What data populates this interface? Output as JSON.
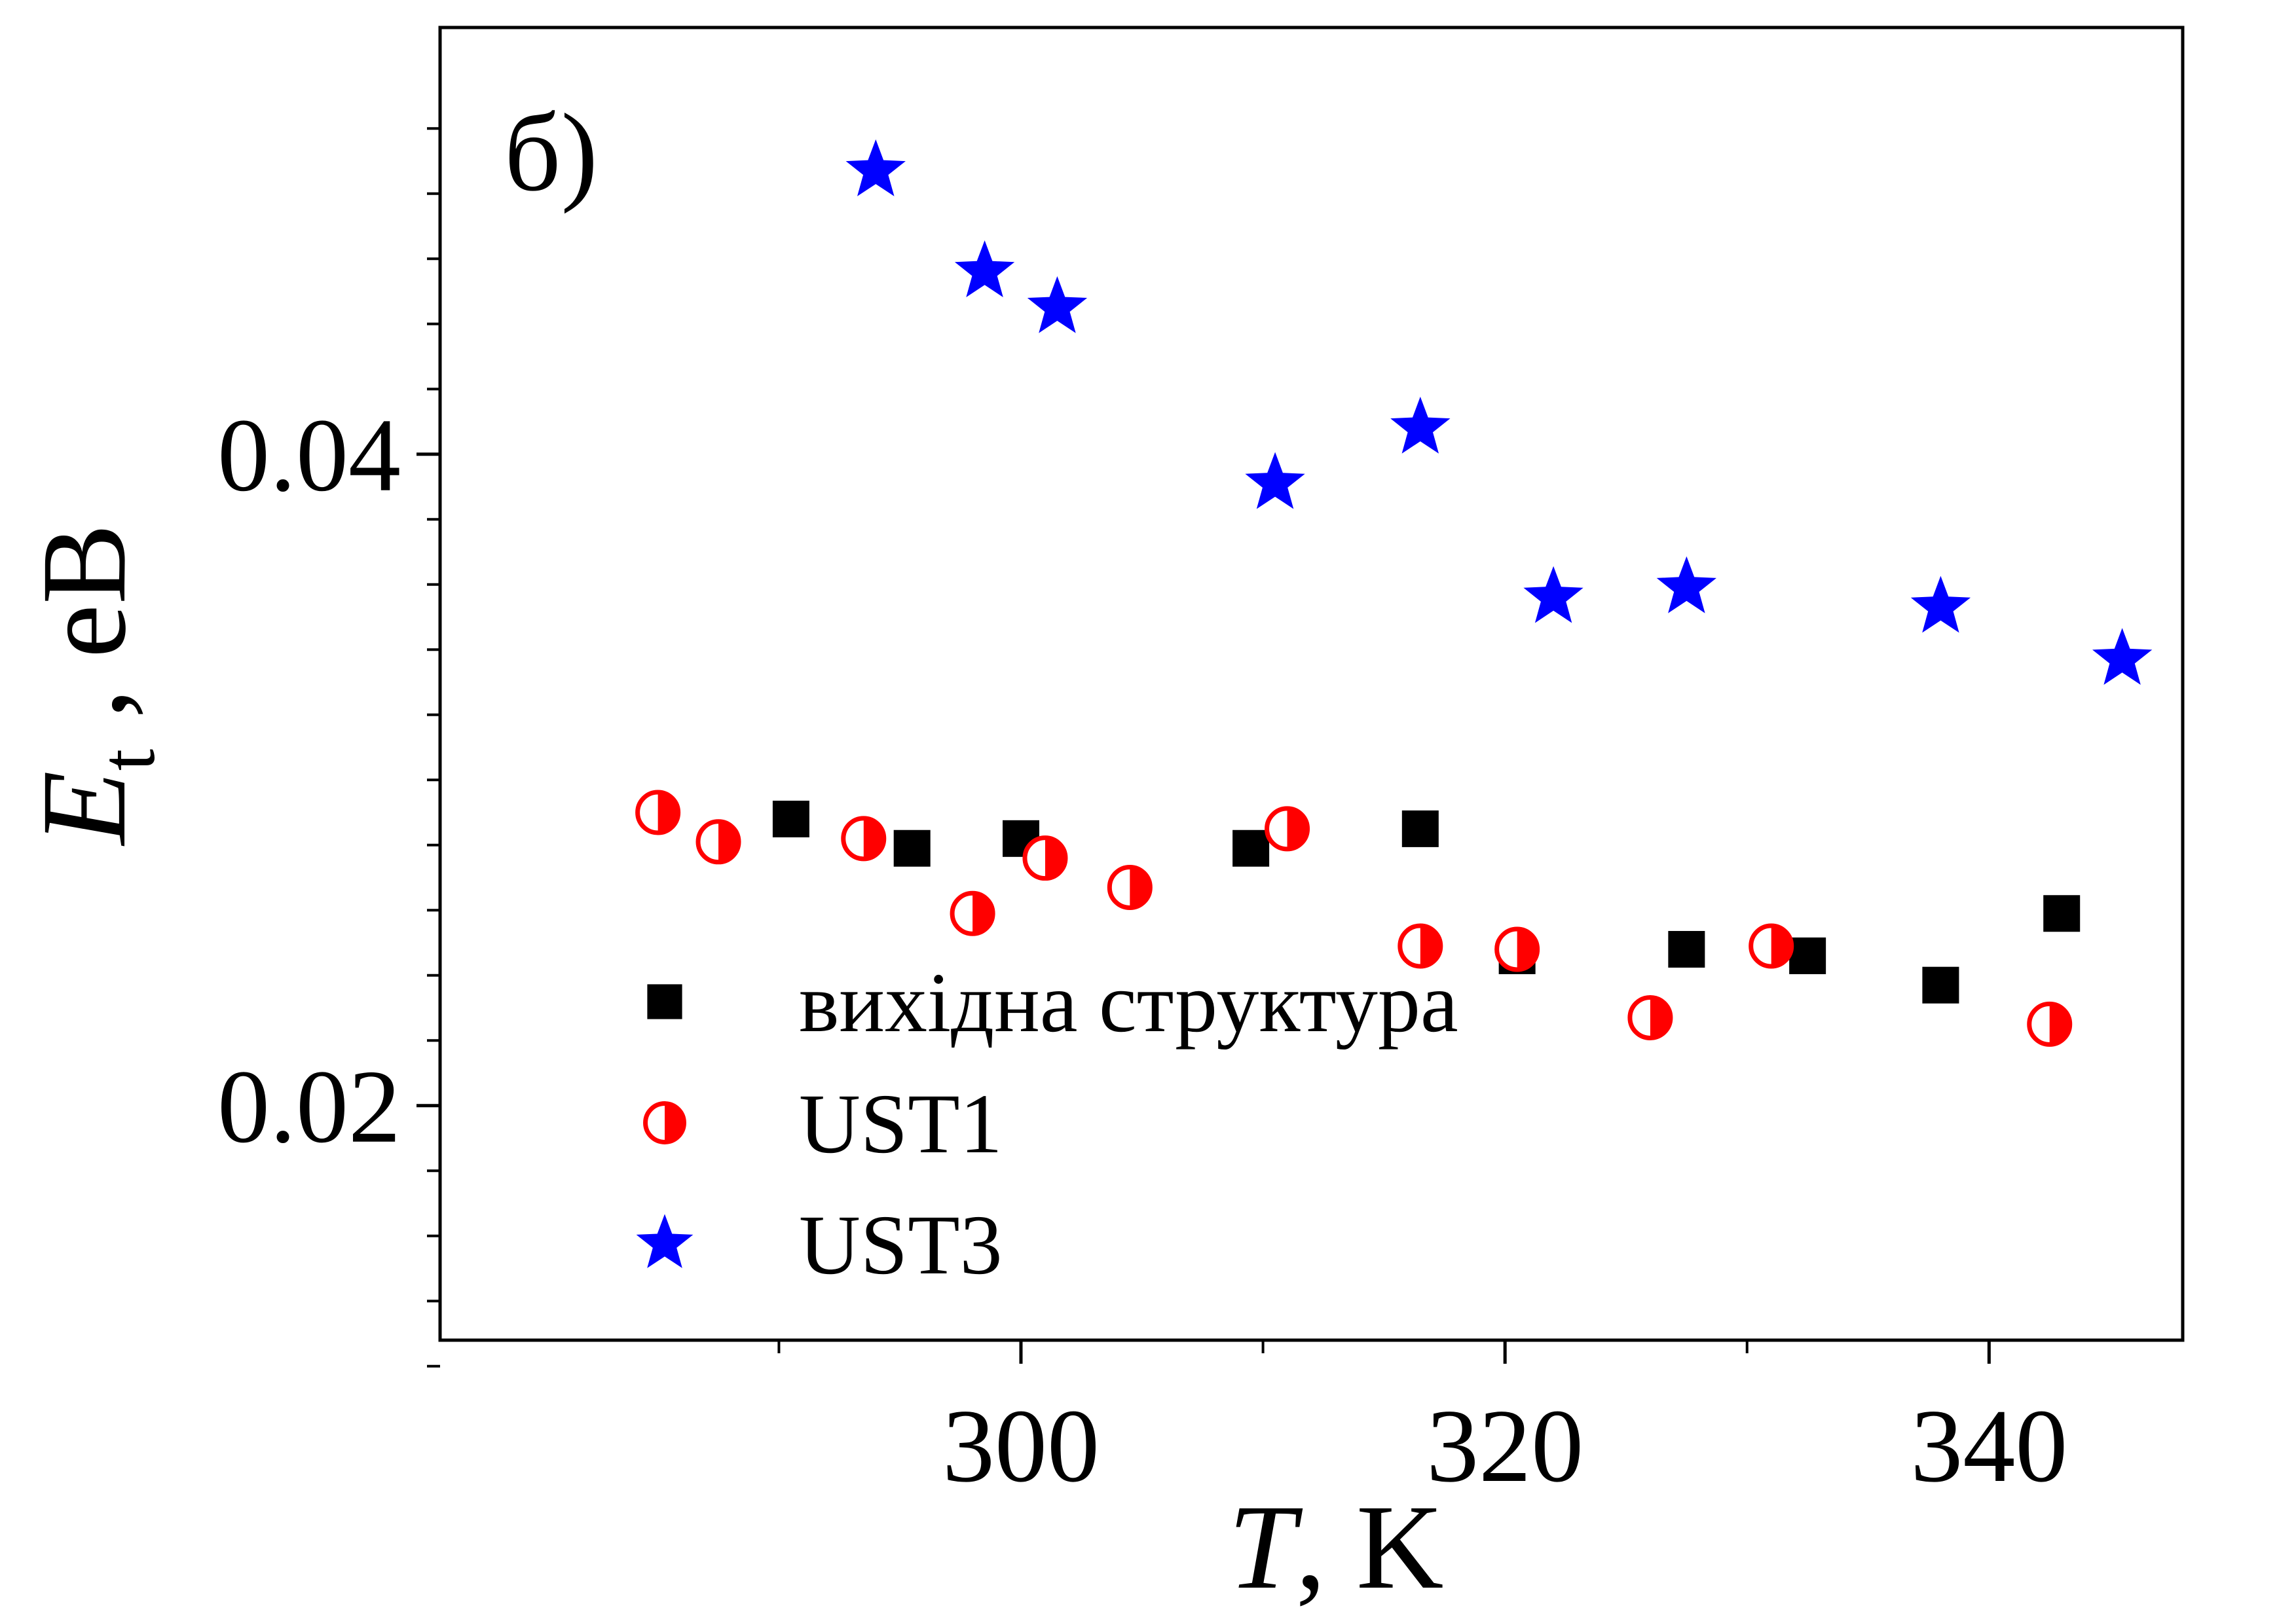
{
  "chart_data": {
    "type": "scatter",
    "panel_label": "б)",
    "xlabel": {
      "symbol": "T",
      "rest": ", K"
    },
    "ylabel": {
      "symbol": "E",
      "subscript": "t",
      "rest": " , eB"
    },
    "xlim": [
      276,
      348
    ],
    "ylim": [
      0.0128,
      0.0531
    ],
    "x_major_ticks": [
      300,
      320,
      340
    ],
    "x_minor_ticks": [
      290,
      310,
      330
    ],
    "y_major_ticks": [
      0.02,
      0.04
    ],
    "y_minor_ticks": [
      0.012,
      0.014,
      0.016,
      0.018,
      0.022,
      0.024,
      0.026,
      0.028,
      0.03,
      0.032,
      0.034,
      0.036,
      0.038,
      0.042,
      0.044,
      0.046,
      0.048,
      0.05
    ],
    "x_tick_labels": [
      "300",
      "320",
      "340"
    ],
    "y_tick_labels": [
      "0.02",
      "0.04"
    ],
    "grid": false,
    "legend_placement": "bottom-left",
    "series": [
      {
        "name": "вихідна структура",
        "marker": "square",
        "color": "#000000",
        "points": [
          {
            "x": 290.5,
            "y": 0.0288
          },
          {
            "x": 295.5,
            "y": 0.0279
          },
          {
            "x": 300.0,
            "y": 0.0282
          },
          {
            "x": 309.5,
            "y": 0.0279
          },
          {
            "x": 316.5,
            "y": 0.0285
          },
          {
            "x": 320.5,
            "y": 0.0246
          },
          {
            "x": 327.5,
            "y": 0.0248
          },
          {
            "x": 332.5,
            "y": 0.0246
          },
          {
            "x": 338.0,
            "y": 0.0237
          },
          {
            "x": 343.0,
            "y": 0.0259
          }
        ]
      },
      {
        "name": "UST1",
        "marker": "half-circle",
        "color": "#ff0000",
        "points": [
          {
            "x": 285.0,
            "y": 0.029
          },
          {
            "x": 287.5,
            "y": 0.0281
          },
          {
            "x": 293.5,
            "y": 0.0282
          },
          {
            "x": 298.0,
            "y": 0.0259
          },
          {
            "x": 301.0,
            "y": 0.0276
          },
          {
            "x": 304.5,
            "y": 0.0267
          },
          {
            "x": 311.0,
            "y": 0.0285
          },
          {
            "x": 316.5,
            "y": 0.0249
          },
          {
            "x": 320.5,
            "y": 0.0248
          },
          {
            "x": 326.0,
            "y": 0.0227
          },
          {
            "x": 331.0,
            "y": 0.0249
          },
          {
            "x": 342.5,
            "y": 0.0225
          }
        ]
      },
      {
        "name": "UST3",
        "marker": "star",
        "color": "#0000ff",
        "points": [
          {
            "x": 294.0,
            "y": 0.0487
          },
          {
            "x": 298.5,
            "y": 0.0456
          },
          {
            "x": 301.5,
            "y": 0.0445
          },
          {
            "x": 310.5,
            "y": 0.0391
          },
          {
            "x": 316.5,
            "y": 0.0408
          },
          {
            "x": 322.0,
            "y": 0.0356
          },
          {
            "x": 327.5,
            "y": 0.0359
          },
          {
            "x": 338.0,
            "y": 0.0353
          },
          {
            "x": 345.5,
            "y": 0.0337
          }
        ]
      }
    ]
  }
}
